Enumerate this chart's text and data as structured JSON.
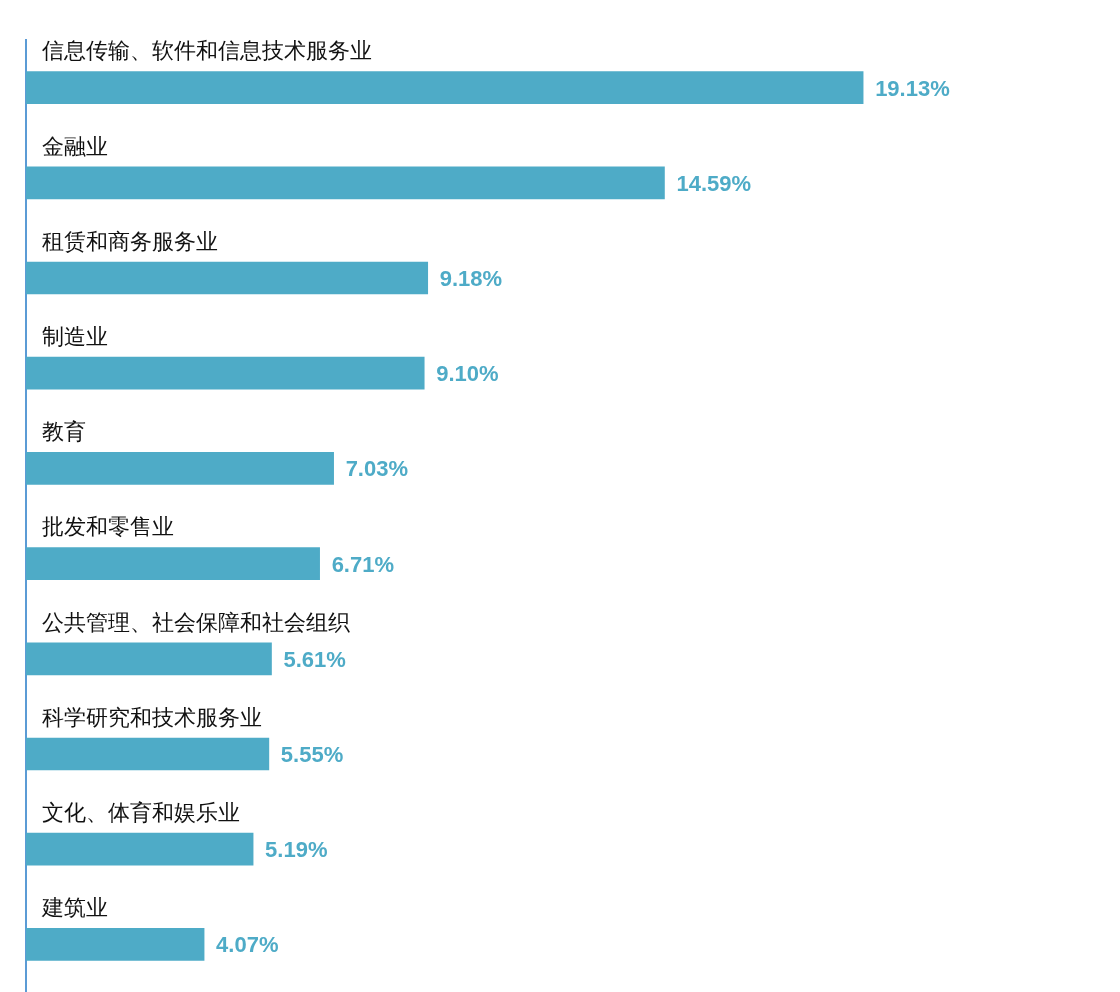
{
  "chart_data": {
    "type": "bar",
    "orientation": "horizontal",
    "categories": [
      "信息传输、软件和信息技术服务业",
      "金融业",
      "租赁和商务服务业",
      "制造业",
      "教育",
      "批发和零售业",
      "公共管理、社会保障和社会组织",
      "科学研究和技术服务业",
      "文化、体育和娱乐业",
      "建筑业"
    ],
    "values": [
      19.13,
      14.59,
      9.18,
      9.1,
      7.03,
      6.71,
      5.61,
      5.55,
      5.19,
      4.07
    ],
    "value_labels": [
      "19.13%",
      "14.59%",
      "9.18%",
      "9.10%",
      "7.03%",
      "6.71%",
      "5.61%",
      "5.55%",
      "5.19%",
      "4.07%"
    ],
    "color": "#4eabc7"
  }
}
